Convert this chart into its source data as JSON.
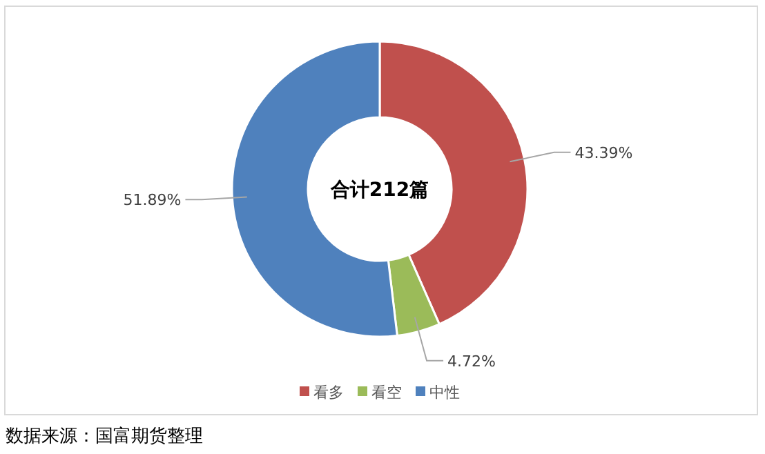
{
  "chart_data": {
    "type": "donut",
    "categories": [
      "看多",
      "看空",
      "中性"
    ],
    "values": [
      43.39,
      4.72,
      51.89
    ],
    "colors": [
      "#c0504d",
      "#9bbb59",
      "#4f81bd"
    ],
    "value_labels": [
      "43.39%",
      "4.72%",
      "51.89%"
    ],
    "legend": "bottom",
    "annotations": [
      "合计212篇",
      "数据来源：国富期货整理"
    ]
  }
}
